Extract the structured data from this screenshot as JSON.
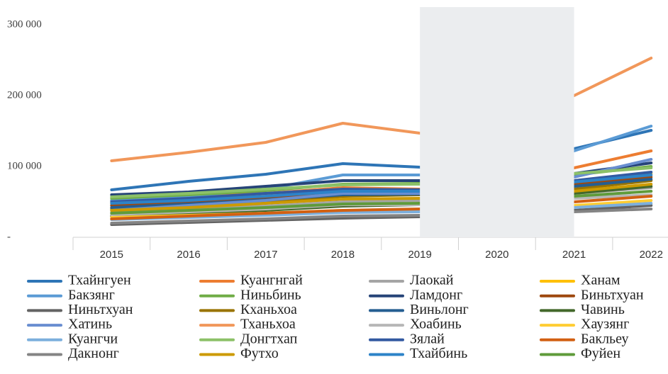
{
  "chart_data": {
    "type": "line",
    "categories": [
      "2015",
      "2016",
      "2017",
      "2018",
      "2019",
      "2020",
      "2021",
      "2022"
    ],
    "ylim": [
      0,
      325000
    ],
    "yticks": [
      {
        "value": 0,
        "label": "-"
      },
      {
        "value": 100000,
        "label": "100 000"
      },
      {
        "value": 200000,
        "label": "200 000"
      },
      {
        "value": 300000,
        "label": "300 000"
      }
    ],
    "legend": "bottom",
    "series": [
      {
        "name": "Тхайнгуен",
        "color": "#2e75b6",
        "values": [
          67000,
          79000,
          89000,
          104000,
          99000,
          null,
          125000,
          151000
        ]
      },
      {
        "name": "Куангнгай",
        "color": "#ed7d31",
        "values": [
          52000,
          58000,
          62000,
          70000,
          68000,
          null,
          98000,
          122000
        ]
      },
      {
        "name": "Лаокай",
        "color": "#a5a5a5",
        "values": [
          35000,
          40000,
          44000,
          50000,
          52000,
          null,
          62000,
          70000
        ]
      },
      {
        "name": "Ханам",
        "color": "#ffc000",
        "values": [
          48000,
          53000,
          58000,
          66000,
          64000,
          null,
          80000,
          90000
        ]
      },
      {
        "name": "Бакзянг",
        "color": "#5b9bd5",
        "values": [
          52000,
          58000,
          68000,
          88000,
          88000,
          null,
          122000,
          157000
        ]
      },
      {
        "name": "Ниньбинь",
        "color": "#70ad47",
        "values": [
          55000,
          60000,
          66000,
          75000,
          76000,
          null,
          88000,
          100000
        ]
      },
      {
        "name": "Ламдонг",
        "color": "#264478",
        "values": [
          60000,
          64000,
          72000,
          80000,
          80000,
          null,
          90000,
          105000
        ]
      },
      {
        "name": "Биньтхуан",
        "color": "#9e480e",
        "values": [
          45000,
          50000,
          55000,
          62000,
          62000,
          null,
          75000,
          85000
        ]
      },
      {
        "name": "Ниньтхуан",
        "color": "#636363",
        "values": [
          18000,
          21000,
          24000,
          27000,
          29000,
          null,
          38000,
          45000
        ]
      },
      {
        "name": "Кханьхоа",
        "color": "#997300",
        "values": [
          40000,
          44000,
          50000,
          58000,
          60000,
          null,
          68000,
          80000
        ]
      },
      {
        "name": "Виньлонг",
        "color": "#255e91",
        "values": [
          42000,
          47000,
          53000,
          60000,
          61000,
          null,
          72000,
          82000
        ]
      },
      {
        "name": "Чавинь",
        "color": "#43682b",
        "values": [
          30000,
          34000,
          38000,
          44000,
          46000,
          null,
          62000,
          72000
        ]
      },
      {
        "name": "Хатинь",
        "color": "#698ed0",
        "values": [
          38000,
          45000,
          52000,
          62000,
          62000,
          null,
          85000,
          110000
        ]
      },
      {
        "name": "Тханьхоа",
        "color": "#f1975a",
        "values": [
          108000,
          120000,
          134000,
          161000,
          147000,
          null,
          200000,
          253000
        ]
      },
      {
        "name": "Хоабинь",
        "color": "#b7b7b7",
        "values": [
          32000,
          36000,
          40000,
          46000,
          46000,
          null,
          55000,
          60000
        ]
      },
      {
        "name": "Хаузянг",
        "color": "#ffcd33",
        "values": [
          28000,
          31000,
          34000,
          38000,
          38000,
          null,
          45000,
          52000
        ]
      },
      {
        "name": "Куангчи",
        "color": "#7cafdd",
        "values": [
          25000,
          28000,
          31000,
          35000,
          36000,
          null,
          42000,
          48000
        ]
      },
      {
        "name": "Донгтхап",
        "color": "#8cc168",
        "values": [
          57000,
          62000,
          68000,
          74000,
          75000,
          null,
          90000,
          98000
        ]
      },
      {
        "name": "Зялай",
        "color": "#335aa1",
        "values": [
          50000,
          55000,
          62000,
          68000,
          67000,
          null,
          80000,
          92000
        ]
      },
      {
        "name": "Бакльеу",
        "color": "#d26012",
        "values": [
          26000,
          30000,
          34000,
          38000,
          40000,
          null,
          50000,
          58000
        ]
      },
      {
        "name": "Дакнонг",
        "color": "#848484",
        "values": [
          20000,
          23000,
          26000,
          30000,
          31000,
          null,
          36000,
          40000
        ]
      },
      {
        "name": "Футхо",
        "color": "#cc9a00",
        "values": [
          38000,
          42000,
          48000,
          54000,
          55000,
          null,
          65000,
          75000
        ]
      },
      {
        "name": "Тхайбинь",
        "color": "#2d83c8",
        "values": [
          48000,
          52000,
          58000,
          65000,
          65000,
          null,
          78000,
          88000
        ]
      },
      {
        "name": "Фуйен",
        "color": "#5f9b3b",
        "values": [
          34000,
          38000,
          42000,
          47000,
          48000,
          null,
          58000,
          65000
        ]
      }
    ]
  }
}
